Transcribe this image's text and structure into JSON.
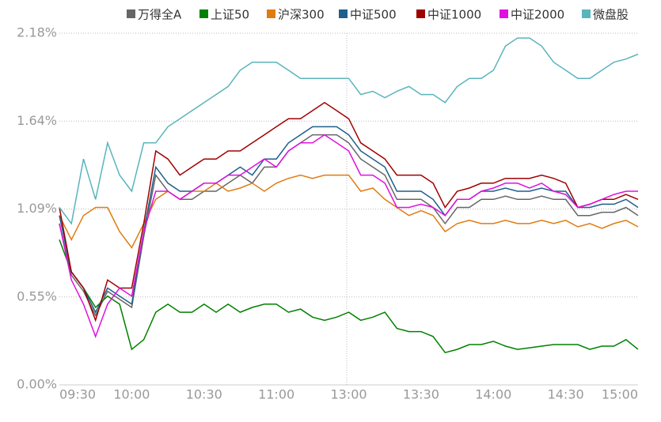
{
  "chart_data": {
    "type": "line",
    "categories": [
      "09:30",
      null,
      null,
      null,
      null,
      null,
      "10:00",
      null,
      null,
      null,
      null,
      null,
      "10:30",
      null,
      null,
      null,
      null,
      null,
      "11:00",
      null,
      null,
      null,
      null,
      null,
      "13:00",
      null,
      null,
      null,
      null,
      null,
      "13:30",
      null,
      null,
      null,
      null,
      null,
      "14:00",
      null,
      null,
      null,
      null,
      null,
      "14:30",
      null,
      null,
      null,
      null,
      null,
      "15:00"
    ],
    "series": [
      {
        "name": "万得全A",
        "color": "#666666",
        "values": [
          1.0,
          0.68,
          0.58,
          0.43,
          0.58,
          0.53,
          0.48,
          0.92,
          1.3,
          1.2,
          1.15,
          1.15,
          1.2,
          1.2,
          1.25,
          1.3,
          1.25,
          1.35,
          1.35,
          1.45,
          1.5,
          1.55,
          1.55,
          1.55,
          1.5,
          1.4,
          1.35,
          1.3,
          1.15,
          1.15,
          1.15,
          1.1,
          1.0,
          1.1,
          1.1,
          1.15,
          1.15,
          1.17,
          1.15,
          1.15,
          1.17,
          1.15,
          1.15,
          1.05,
          1.05,
          1.07,
          1.07,
          1.1,
          1.05
        ]
      },
      {
        "name": "上证50",
        "color": "#008000",
        "values": [
          0.9,
          0.7,
          0.6,
          0.48,
          0.55,
          0.5,
          0.22,
          0.28,
          0.45,
          0.5,
          0.45,
          0.45,
          0.5,
          0.45,
          0.5,
          0.45,
          0.48,
          0.5,
          0.5,
          0.45,
          0.47,
          0.42,
          0.4,
          0.42,
          0.45,
          0.4,
          0.42,
          0.45,
          0.35,
          0.33,
          0.33,
          0.3,
          0.2,
          0.22,
          0.25,
          0.25,
          0.27,
          0.24,
          0.22,
          0.23,
          0.24,
          0.25,
          0.25,
          0.25,
          0.22,
          0.24,
          0.24,
          0.28,
          0.22
        ]
      },
      {
        "name": "沪深300",
        "color": "#e07b10",
        "values": [
          1.05,
          0.9,
          1.05,
          1.1,
          1.1,
          0.95,
          0.85,
          1.0,
          1.15,
          1.2,
          1.15,
          1.2,
          1.2,
          1.25,
          1.2,
          1.22,
          1.25,
          1.2,
          1.25,
          1.28,
          1.3,
          1.28,
          1.3,
          1.3,
          1.3,
          1.2,
          1.22,
          1.15,
          1.1,
          1.05,
          1.08,
          1.05,
          0.95,
          1.0,
          1.02,
          1.0,
          1.0,
          1.02,
          1.0,
          1.0,
          1.02,
          1.0,
          1.02,
          0.98,
          1.0,
          0.97,
          1.0,
          1.02,
          0.98
        ]
      },
      {
        "name": "中证500",
        "color": "#1f5f8b",
        "values": [
          1.05,
          0.7,
          0.6,
          0.45,
          0.6,
          0.55,
          0.5,
          0.95,
          1.35,
          1.25,
          1.2,
          1.2,
          1.25,
          1.25,
          1.3,
          1.35,
          1.3,
          1.4,
          1.4,
          1.5,
          1.55,
          1.6,
          1.6,
          1.6,
          1.55,
          1.45,
          1.4,
          1.35,
          1.2,
          1.2,
          1.2,
          1.15,
          1.05,
          1.15,
          1.15,
          1.2,
          1.2,
          1.22,
          1.2,
          1.2,
          1.22,
          1.2,
          1.2,
          1.1,
          1.1,
          1.12,
          1.12,
          1.15,
          1.1
        ]
      },
      {
        "name": "中证1000",
        "color": "#a00000",
        "values": [
          1.1,
          0.7,
          0.6,
          0.4,
          0.65,
          0.6,
          0.6,
          1.0,
          1.45,
          1.4,
          1.3,
          1.35,
          1.4,
          1.4,
          1.45,
          1.45,
          1.5,
          1.55,
          1.6,
          1.65,
          1.65,
          1.7,
          1.75,
          1.7,
          1.65,
          1.5,
          1.45,
          1.4,
          1.3,
          1.3,
          1.3,
          1.25,
          1.1,
          1.2,
          1.22,
          1.25,
          1.25,
          1.28,
          1.28,
          1.28,
          1.3,
          1.28,
          1.25,
          1.1,
          1.12,
          1.15,
          1.15,
          1.18,
          1.15
        ]
      },
      {
        "name": "中证2000",
        "color": "#e010e0",
        "values": [
          1.0,
          0.65,
          0.5,
          0.3,
          0.5,
          0.6,
          0.55,
          0.95,
          1.2,
          1.2,
          1.15,
          1.2,
          1.25,
          1.25,
          1.3,
          1.3,
          1.35,
          1.4,
          1.35,
          1.45,
          1.5,
          1.5,
          1.55,
          1.5,
          1.45,
          1.3,
          1.3,
          1.25,
          1.1,
          1.1,
          1.12,
          1.1,
          1.05,
          1.15,
          1.15,
          1.2,
          1.22,
          1.25,
          1.25,
          1.22,
          1.25,
          1.2,
          1.18,
          1.1,
          1.12,
          1.15,
          1.18,
          1.2,
          1.2
        ]
      },
      {
        "name": "微盘股",
        "color": "#5ab4bc",
        "values": [
          1.1,
          1.0,
          1.4,
          1.15,
          1.5,
          1.3,
          1.2,
          1.5,
          1.5,
          1.6,
          1.65,
          1.7,
          1.75,
          1.8,
          1.85,
          1.95,
          2.0,
          2.0,
          2.0,
          1.95,
          1.9,
          1.9,
          1.9,
          1.9,
          1.9,
          1.8,
          1.82,
          1.78,
          1.82,
          1.85,
          1.8,
          1.8,
          1.75,
          1.85,
          1.9,
          1.9,
          1.95,
          2.1,
          2.15,
          2.15,
          2.1,
          2.0,
          1.95,
          1.9,
          1.9,
          1.95,
          2.0,
          2.02,
          2.05
        ]
      }
    ],
    "ylim": [
      0,
      2.18
    ],
    "yticks": [
      {
        "value": 0,
        "label": "0.00%"
      },
      {
        "value": 0.545,
        "label": "0.55%"
      },
      {
        "value": 1.09,
        "label": "1.09%"
      },
      {
        "value": 1.635,
        "label": "1.64%"
      },
      {
        "value": 2.18,
        "label": "2.18%"
      }
    ],
    "grid": true,
    "legend": "top-right"
  }
}
